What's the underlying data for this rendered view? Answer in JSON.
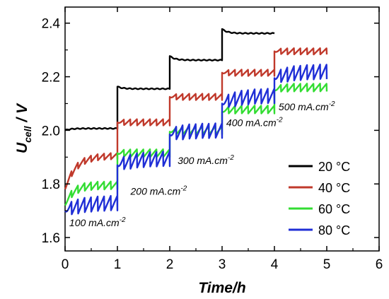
{
  "chart_data": {
    "type": "line",
    "xlabel": "Time/h",
    "ylabel_main": "U",
    "ylabel_sub": "cell",
    "ylabel_unit": " / V",
    "xlim": [
      0,
      6
    ],
    "ylim": [
      1.55,
      2.46
    ],
    "xticks": [
      "0",
      "1",
      "2",
      "3",
      "4",
      "5",
      "6"
    ],
    "yticks": [
      "1.6",
      "1.8",
      "2.0",
      "2.2",
      "2.4"
    ],
    "grid": false,
    "legend_position": "bottom-right",
    "annotations": [
      {
        "text": "100 mA.cm",
        "sup": "-2",
        "x": 0.08,
        "y": 1.642
      },
      {
        "text": "200 mA.cm",
        "sup": "-2",
        "x": 1.25,
        "y": 1.76
      },
      {
        "text": "300 mA.cm",
        "sup": "-2",
        "x": 2.15,
        "y": 1.875
      },
      {
        "text": "400 mA.cm",
        "sup": "-2",
        "x": 3.08,
        "y": 2.015
      },
      {
        "text": "500 mA.cm",
        "sup": "-2",
        "x": 4.08,
        "y": 2.075
      }
    ],
    "series": [
      {
        "name": "20 °C",
        "color": "#000000",
        "ripple": 0.0,
        "segments": [
          {
            "t0": 0,
            "t1": 1,
            "start": 2.0,
            "end": 2.007,
            "tau": 0.1
          },
          {
            "t0": 1,
            "t1": 2,
            "start": 2.163,
            "end": 2.155,
            "tau": 0.1
          },
          {
            "t0": 2,
            "t1": 3,
            "start": 2.277,
            "end": 2.262,
            "tau": 0.1
          },
          {
            "t0": 3,
            "t1": 4,
            "start": 2.378,
            "end": 2.362,
            "tau": 0.1
          }
        ]
      },
      {
        "name": "40 °C",
        "color": "#c0392b",
        "ripple": 0.012,
        "segments": [
          {
            "t0": 0,
            "t1": 1,
            "start": 1.78,
            "end": 1.905,
            "tau": 0.2
          },
          {
            "t0": 1,
            "t1": 2,
            "start": 2.03,
            "end": 2.03,
            "tau": 0.1
          },
          {
            "t0": 2,
            "t1": 3,
            "start": 2.125,
            "end": 2.125,
            "tau": 0.1
          },
          {
            "t0": 3,
            "t1": 4,
            "start": 2.215,
            "end": 2.215,
            "tau": 0.1
          },
          {
            "t0": 4,
            "t1": 5,
            "start": 2.295,
            "end": 2.295,
            "tau": 0.1
          }
        ]
      },
      {
        "name": "60 °C",
        "color": "#33dd33",
        "ripple": 0.015,
        "segments": [
          {
            "t0": 0,
            "t1": 1,
            "start": 1.72,
            "end": 1.795,
            "tau": 0.15
          },
          {
            "t0": 1,
            "t1": 2,
            "start": 1.915,
            "end": 1.915,
            "tau": 0.1
          },
          {
            "t0": 2,
            "t1": 3,
            "start": 1.995,
            "end": 2.0,
            "tau": 0.1
          },
          {
            "t0": 3,
            "t1": 4,
            "start": 2.07,
            "end": 2.078,
            "tau": 0.1
          },
          {
            "t0": 4,
            "t1": 5,
            "start": 2.15,
            "end": 2.16,
            "tau": 0.1
          }
        ]
      },
      {
        "name": "80 °C",
        "color": "#1f2ed6",
        "ripple": 0.028,
        "segments": [
          {
            "t0": 0,
            "t1": 1,
            "start": 1.7,
            "end": 1.73,
            "tau": 0.3
          },
          {
            "t0": 1,
            "t1": 2,
            "start": 1.87,
            "end": 1.895,
            "tau": 0.3
          },
          {
            "t0": 2,
            "t1": 3,
            "start": 1.985,
            "end": 2.0,
            "tau": 0.3
          },
          {
            "t0": 3,
            "t1": 4,
            "start": 2.1,
            "end": 2.13,
            "tau": 0.3
          },
          {
            "t0": 4,
            "t1": 5,
            "start": 2.195,
            "end": 2.22,
            "tau": 0.3
          }
        ]
      }
    ]
  }
}
